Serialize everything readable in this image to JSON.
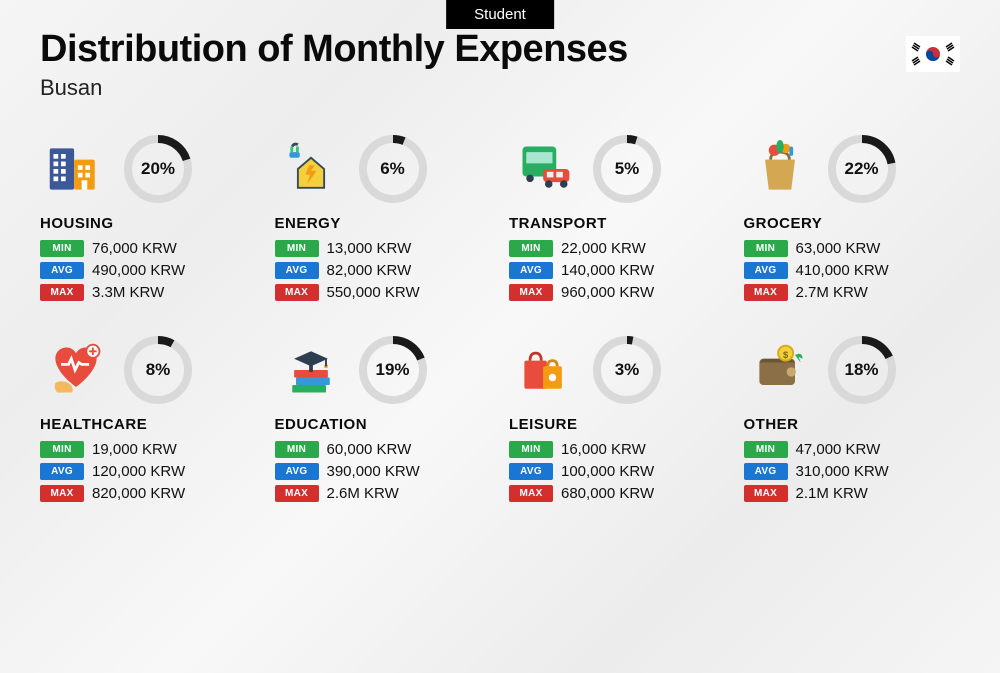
{
  "tag": "Student",
  "title": "Distribution of Monthly Expenses",
  "subtitle": "Busan",
  "labels": {
    "min": "MIN",
    "avg": "AVG",
    "max": "MAX"
  },
  "ring": {
    "radius": 30,
    "stroke_width": 8,
    "track_color": "#d9d9d9",
    "progress_color": "#1a1a1a"
  },
  "categories": [
    {
      "key": "housing",
      "name": "HOUSING",
      "percent": 20,
      "min": "76,000 KRW",
      "avg": "490,000 KRW",
      "max": "3.3M KRW"
    },
    {
      "key": "energy",
      "name": "ENERGY",
      "percent": 6,
      "min": "13,000 KRW",
      "avg": "82,000 KRW",
      "max": "550,000 KRW"
    },
    {
      "key": "transport",
      "name": "TRANSPORT",
      "percent": 5,
      "min": "22,000 KRW",
      "avg": "140,000 KRW",
      "max": "960,000 KRW"
    },
    {
      "key": "grocery",
      "name": "GROCERY",
      "percent": 22,
      "min": "63,000 KRW",
      "avg": "410,000 KRW",
      "max": "2.7M KRW"
    },
    {
      "key": "healthcare",
      "name": "HEALTHCARE",
      "percent": 8,
      "min": "19,000 KRW",
      "avg": "120,000 KRW",
      "max": "820,000 KRW"
    },
    {
      "key": "education",
      "name": "EDUCATION",
      "percent": 19,
      "min": "60,000 KRW",
      "avg": "390,000 KRW",
      "max": "2.6M KRW"
    },
    {
      "key": "leisure",
      "name": "LEISURE",
      "percent": 3,
      "min": "16,000 KRW",
      "avg": "100,000 KRW",
      "max": "680,000 KRW"
    },
    {
      "key": "other",
      "name": "OTHER",
      "percent": 18,
      "min": "47,000 KRW",
      "avg": "310,000 KRW",
      "max": "2.1M KRW"
    }
  ],
  "icons": {
    "housing": "<svg viewBox='0 0 64 64' width='60' height='60'><rect x='4' y='10' width='26' height='44' fill='#3b5998' rx='2'/><rect x='8' y='16' width='5' height='5' fill='#fff'/><rect x='16' y='16' width='5' height='5' fill='#fff'/><rect x='8' y='24' width='5' height='5' fill='#fff'/><rect x='16' y='24' width='5' height='5' fill='#fff'/><rect x='8' y='32' width='5' height='5' fill='#fff'/><rect x='16' y='32' width='5' height='5' fill='#fff'/><rect x='8' y='40' width='5' height='5' fill='#fff'/><rect x='16' y='40' width='5' height='5' fill='#fff'/><rect x='30' y='22' width='22' height='32' fill='#f39c12' rx='2'/><rect x='34' y='28' width='5' height='5' fill='#fff'/><rect x='42' y='28' width='5' height='5' fill='#fff'/><rect x='34' y='36' width='5' height='5' fill='#fff'/><rect x='42' y='36' width='5' height='5' fill='#fff'/><rect x='38' y='44' width='6' height='10' fill='#fff'/></svg>",
    "energy": "<svg viewBox='0 0 64 64' width='60' height='60'><path d='M18 32 L32 20 L46 32 L46 52 L18 52 Z' fill='#f4d03f' stroke='#34495e' stroke-width='2'/><path d='M30 28 L26 38 L31 38 L28 48 L38 34 L32 34 L36 28 Z' fill='#f39c12'/><path d='M12 8 Q14 4 18 6' stroke='#34495e' stroke-width='3' fill='none'/><rect x='10' y='8' width='3' height='6' fill='#2ecc71'/><rect x='16' y='8' width='3' height='6' fill='#2ecc71'/><rect x='9' y='14' width='11' height='6' fill='#3498db' rx='2'/></svg>",
    "transport": "<svg viewBox='0 0 64 64' width='60' height='60'><rect x='8' y='8' width='36' height='32' fill='#27ae60' rx='4'/><rect x='12' y='14' width='28' height='12' fill='#a8e6cf'/><circle cx='16' cy='42' r='4' fill='#2c3e50'/><circle cx='36' cy='42' r='4' fill='#2c3e50'/><rect x='30' y='32' width='28' height='14' fill='#e74c3c' rx='4'/><rect x='34' y='35' width='7' height='6' fill='#ecf0f1'/><rect x='44' y='35' width='7' height='6' fill='#ecf0f1'/><circle cx='36' cy='48' r='4' fill='#2c3e50'/><circle cx='52' cy='48' r='4' fill='#2c3e50'/></svg>",
    "grocery": "<svg viewBox='0 0 64 64' width='60' height='60'><path d='M16 22 L48 22 L44 54 L20 54 Z' fill='#d4a853'/><path d='M22 22 Q22 14 32 14 Q42 14 42 22' stroke='#8b6f3e' stroke-width='3' fill='none'/><circle cx='26' cy='12' r='6' fill='#e74c3c'/><circle cx='38' cy='10' r='5' fill='#f39c12'/><ellipse cx='32' cy='8' rx='4' ry='7' fill='#27ae60'/><rect x='42' y='8' width='4' height='10' fill='#3498db' rx='2'/></svg>",
    "healthcare": "<svg viewBox='0 0 64 64' width='60' height='60'><path d='M32 50 C 18 40 10 28 10 20 C 10 12 16 8 22 8 C 27 8 30 11 32 14 C 34 11 37 8 42 8 C 48 8 54 12 54 20 C 54 28 46 40 32 50 Z' fill='#e74c3c'/><path d='M16 26 L24 26 L27 20 L31 32 L35 24 L38 26 L46 26' stroke='#fff' stroke-width='3' fill='none'/><circle cx='50' cy='12' r='7' fill='#fff' stroke='#e74c3c' stroke-width='2'/><path d='M50 8 L50 16 M46 12 L54 12' stroke='#e74c3c' stroke-width='2'/><path d='M10 46 Q16 42 24 46 Q30 50 28 56 L12 56 Q8 52 10 46 Z' fill='#f4b860'/></svg>",
    "education": "<svg viewBox='0 0 64 64' width='60' height='60'><rect x='14' y='32' width='36' height='8' fill='#e74c3c' rx='1'/><rect x='16' y='40' width='36' height='8' fill='#3498db' rx='1'/><rect x='12' y='48' width='36' height='8' fill='#27ae60' rx='1'/><path d='M14 20 L32 12 L50 20 L32 28 Z' fill='#2c3e50'/><rect x='30' y='24' width='4' height='10' fill='#2c3e50'/><circle cx='48' cy='28' r='2' fill='#f39c12'/><line x1='48' y1='20' x2='48' y2='28' stroke='#2c3e50' stroke-width='2'/></svg>",
    "leisure": "<svg viewBox='0 0 64 64' width='60' height='60'><rect x='10' y='22' width='24' height='30' fill='#e74c3c' rx='2'/><path d='M16 22 Q16 14 22 14 Q28 14 28 22' stroke='#c0392b' stroke-width='3' fill='none'/><rect x='30' y='28' width='20' height='24' fill='#f39c12' rx='2'/><path d='M35 28 Q35 22 40 22 Q45 22 45 28' stroke='#d68910' stroke-width='3' fill='none'/><circle cx='40' cy='40' r='4' fill='#fff'/></svg>",
    "other": "<svg viewBox='0 0 64 64' width='60' height='60'><rect x='10' y='20' width='38' height='28' fill='#8b6f47' rx='4'/><path d='M10 24 L48 24 L44 20 L14 20 Z' fill='#6b5537'/><circle cx='44' cy='34' r='5' fill='#c9a96e'/><circle cx='38' cy='14' r='8' fill='#f4d03f' stroke='#d4ac0d' stroke-width='2'/><text x='38' y='19' font-size='10' text-anchor='middle' fill='#7d6608' font-weight='bold'>$</text><path d='M48 16 Q56 12 56 20 L52 18 L54 24 Z' fill='#27ae60'/></svg>"
  },
  "flag_svg": "<svg viewBox='0 0 54 36' width='54' height='36'><rect width='54' height='36' fill='#fff'/><circle cx='27' cy='18' r='7' fill='#cd2e3a'/><path d='M20 18 A7 7 0 0 0 34 18 A3.5 3.5 0 0 1 27 18 A3.5 3.5 0 0 0 20 18 Z' fill='#0047a0'/><g stroke='#000' stroke-width='1.5'><line x1='8' y1='7' x2='14' y2='11'/><line x1='7' y1='9' x2='13' y2='13'/><line x1='6' y1='11' x2='12' y2='15'/><line x1='40' y1='11' x2='46' y2='7'/><line x1='41' y1='13' x2='47' y2='9'/><line x1='42' y1='15' x2='48' y2='11'/><line x1='8' y1='29' x2='14' y2='25'/><line x1='7' y1='27' x2='13' y2='23'/><line x1='6' y1='25' x2='12' y2='21'/><line x1='40' y1='25' x2='46' y2='29'/><line x1='41' y1='23' x2='47' y2='27'/><line x1='42' y1='21' x2='48' y2='25'/></g></svg>"
}
